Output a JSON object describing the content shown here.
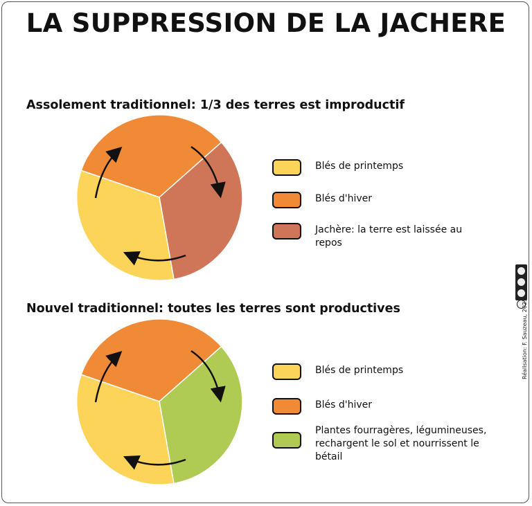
{
  "title": "LA SUPPRESSION DE LA JACHERE",
  "colors": {
    "spring": "#FDD45A",
    "winter": "#F08A37",
    "fallow": "#CF7658",
    "fodder": "#AFCB53"
  },
  "sections": [
    {
      "subtitle": "Assolement traditionnel: 1/3 des terres est improductif",
      "legend": [
        {
          "label": "Blés de printemps",
          "color": "#FDD45A"
        },
        {
          "label": "Blés d'hiver",
          "color": "#F08A37"
        },
        {
          "label": "Jachère: la terre est laissée au repos",
          "color": "#CF7658"
        }
      ]
    },
    {
      "subtitle": "Nouvel traditionnel: toutes les terres sont productives",
      "legend": [
        {
          "label": "Blés de printemps",
          "color": "#FDD45A"
        },
        {
          "label": "Blés d'hiver",
          "color": "#F08A37"
        },
        {
          "label": "Plantes fourragères, légumineuses, rechargent le sol et nourrissent le bétail",
          "color": "#AFCB53"
        }
      ]
    }
  ],
  "credit": "Réalisation: F. Sauzeau, 2023"
}
